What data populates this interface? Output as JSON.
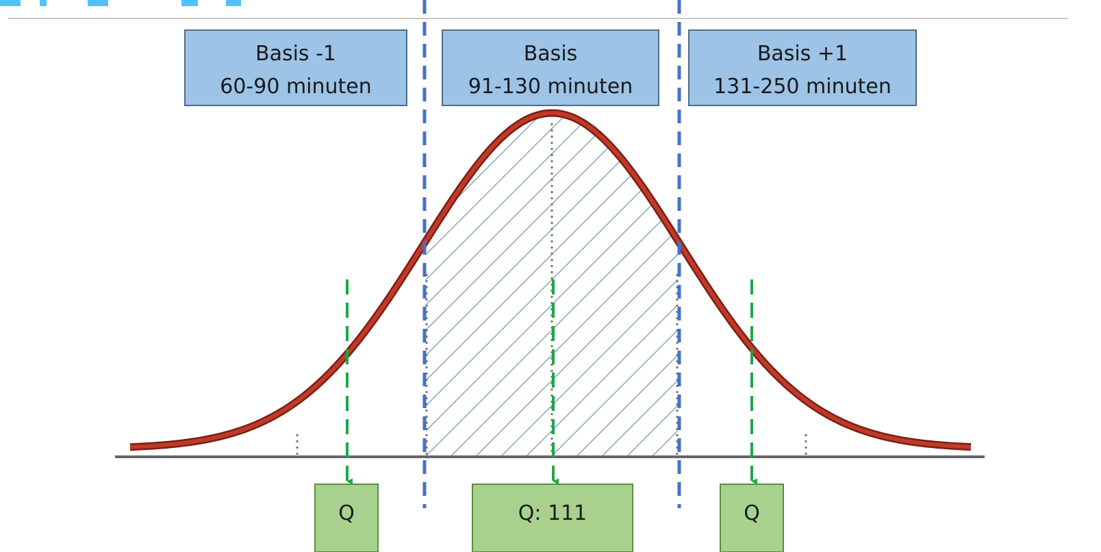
{
  "periods": [
    {
      "title": "Basis -1",
      "range": "60-90 minuten"
    },
    {
      "title": "Basis",
      "range": "91-130 minuten"
    },
    {
      "title": "Basis +1",
      "range": "131-250 minuten"
    }
  ],
  "quantity_labels": [
    "Q",
    "Q: 111",
    "Q"
  ],
  "colors": {
    "curve": "#b5301c",
    "period_box_fill": "#9dc3e6",
    "quantity_box_fill": "#a9d18e",
    "boundary_line": "#4472c4",
    "marker_arrow": "#1fa64a",
    "hatch": "#6d98a8",
    "heading_fragment": "#4fc3f7"
  }
}
